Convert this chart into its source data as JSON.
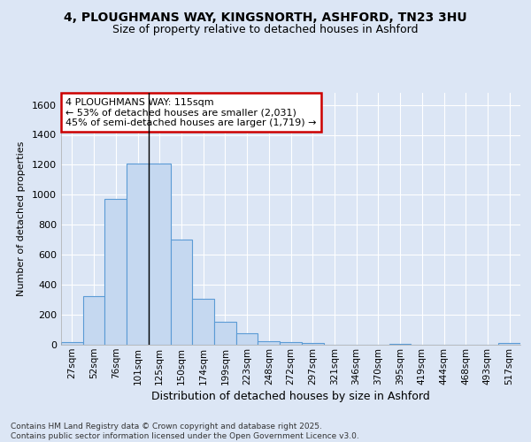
{
  "title1": "4, PLOUGHMANS WAY, KINGSNORTH, ASHFORD, TN23 3HU",
  "title2": "Size of property relative to detached houses in Ashford",
  "xlabel": "Distribution of detached houses by size in Ashford",
  "ylabel": "Number of detached properties",
  "bar_color": "#c5d8f0",
  "bar_edge_color": "#5b9bd5",
  "background_color": "#dce6f5",
  "grid_color": "#ffffff",
  "categories": [
    "27sqm",
    "52sqm",
    "76sqm",
    "101sqm",
    "125sqm",
    "150sqm",
    "174sqm",
    "199sqm",
    "223sqm",
    "248sqm",
    "272sqm",
    "297sqm",
    "321sqm",
    "346sqm",
    "370sqm",
    "395sqm",
    "419sqm",
    "444sqm",
    "468sqm",
    "493sqm",
    "517sqm"
  ],
  "values": [
    20,
    325,
    970,
    1210,
    1210,
    700,
    305,
    155,
    75,
    25,
    15,
    10,
    0,
    0,
    0,
    8,
    0,
    0,
    0,
    0,
    10
  ],
  "ylim": [
    0,
    1680
  ],
  "yticks": [
    0,
    200,
    400,
    600,
    800,
    1000,
    1200,
    1400,
    1600
  ],
  "vline_index": 3,
  "annotation_title": "4 PLOUGHMANS WAY: 115sqm",
  "annotation_line1": "← 53% of detached houses are smaller (2,031)",
  "annotation_line2": "45% of semi-detached houses are larger (1,719) →",
  "annotation_box_color": "#ffffff",
  "annotation_box_edge": "#cc0000",
  "footer1": "Contains HM Land Registry data © Crown copyright and database right 2025.",
  "footer2": "Contains public sector information licensed under the Open Government Licence v3.0."
}
